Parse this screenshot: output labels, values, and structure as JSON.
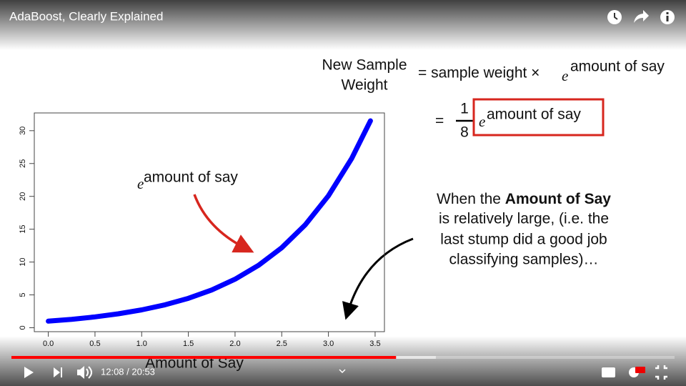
{
  "header": {
    "title": "AdaBoost, Clearly Explained"
  },
  "slide": {
    "formula": {
      "lhs_line1": "New Sample",
      "lhs_line2": "Weight",
      "rhs1": "= sample weight ×",
      "base1": "e",
      "exp1": "amount of say",
      "eq2": "=",
      "numerator": "1",
      "denominator": "8",
      "base2": "e",
      "exp2": "amount of say"
    },
    "note": {
      "part1": "When the ",
      "bold": "Amount of Say",
      "line2": "is relatively large, (i.e. the",
      "line3": "last stump did a good job",
      "line4": "classifying samples)…"
    },
    "chart": {
      "type": "line",
      "color": "#0000ff",
      "curve_label_base": "e",
      "curve_label_exp": "amount of say",
      "x_label": "Amount of Say",
      "x": [
        0,
        0.25,
        0.5,
        0.75,
        1,
        1.25,
        1.5,
        1.75,
        2,
        2.25,
        2.5,
        2.75,
        3,
        3.25,
        3.45
      ],
      "y": [
        1,
        1.28,
        1.65,
        2.12,
        2.72,
        3.49,
        4.48,
        5.75,
        7.39,
        9.49,
        12.18,
        15.64,
        20.09,
        25.79,
        31.5
      ],
      "xlim": [
        -0.15,
        3.6
      ],
      "ylim": [
        -0.6,
        32.7
      ],
      "xticks": [
        {
          "value": 0,
          "label": "0.0"
        },
        0.5,
        {
          "value": 1,
          "label": "1.0"
        },
        1.5,
        {
          "value": 2,
          "label": "2.0"
        },
        2.5,
        {
          "value": 3,
          "label": "3.0"
        },
        3.5
      ],
      "yticks": [
        0,
        5,
        10,
        15,
        20,
        25,
        30
      ]
    }
  },
  "player": {
    "time": "12:08 / 20:53",
    "progress": 0.58,
    "buffered": 0.64
  }
}
